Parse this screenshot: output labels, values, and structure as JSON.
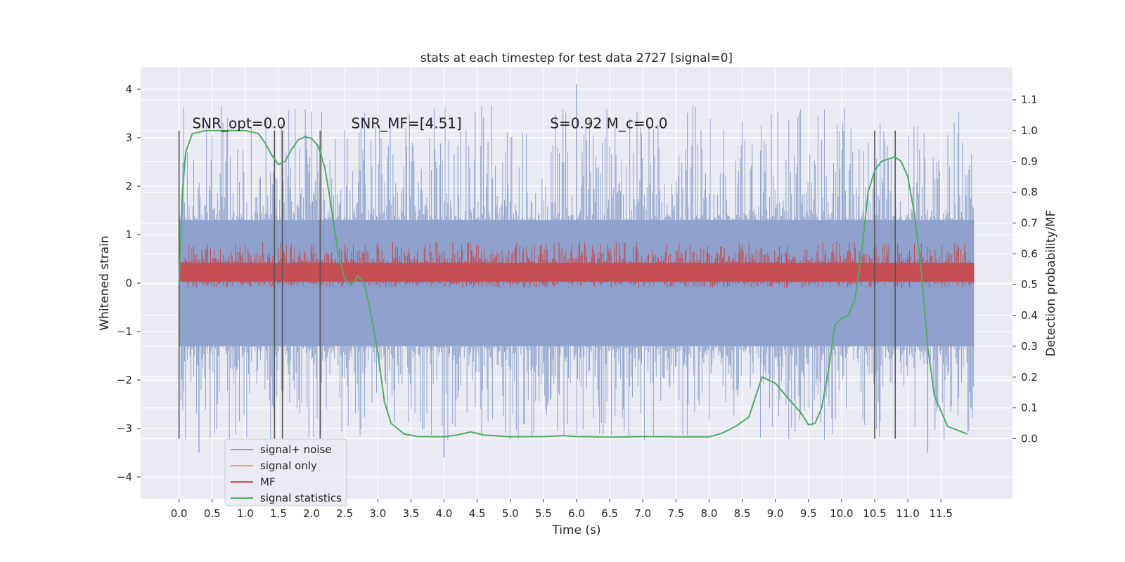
{
  "chart_data": {
    "type": "line",
    "title": "stats at each timestep for test data 2727 [signal=0]",
    "xlabel": "Time (s)",
    "ylabel": "Whitened strain",
    "y2label": "Detection probability/MF",
    "xlim": [
      -0.58,
      12.58
    ],
    "ylim": [
      -4.45,
      4.45
    ],
    "y2lim": [
      -0.195,
      1.205
    ],
    "x_ticks": [
      "0.0",
      "0.5",
      "1.0",
      "1.5",
      "2.0",
      "2.5",
      "3.0",
      "3.5",
      "4.0",
      "4.5",
      "5.0",
      "5.5",
      "6.0",
      "6.5",
      "7.0",
      "7.5",
      "8.0",
      "8.5",
      "9.0",
      "9.5",
      "10.0",
      "10.5",
      "11.0",
      "11.5"
    ],
    "y_ticks": [
      "−4",
      "−3",
      "−2",
      "−1",
      "0",
      "1",
      "2",
      "3",
      "4"
    ],
    "y2_ticks": [
      "0.0",
      "0.1",
      "0.2",
      "0.3",
      "0.4",
      "0.5",
      "0.6",
      "0.7",
      "0.8",
      "0.9",
      "1.0",
      "1.1"
    ],
    "grid": true,
    "legend_position": "lower-left",
    "annotations": [
      {
        "text": "SNR_opt=0.0",
        "x": 0.2,
        "y": 3.3
      },
      {
        "text": "SNR_MF=[4.51]",
        "x": 2.6,
        "y": 3.3
      },
      {
        "text": "S=0.92   M_c=0.0",
        "x": 5.6,
        "y": 3.3
      }
    ],
    "vlines": {
      "x": [
        0.0,
        1.44,
        1.56,
        2.13,
        10.5,
        10.81
      ],
      "ymin": 0.0,
      "ymax": 1.0
    },
    "series": [
      {
        "name": "signal+ noise",
        "axis": "left",
        "color": "#8da0cb",
        "x_range": [
          0.0,
          12.0
        ],
        "envelope_upper": 1.3,
        "envelope_lower": -1.3,
        "spike_max": 4.1,
        "spike_min": -3.6
      },
      {
        "name": "signal only",
        "axis": "left",
        "color": "#e8a68a",
        "values": []
      },
      {
        "name": "MF",
        "axis": "right",
        "color": "#c44e52",
        "x_range": [
          0.0,
          12.0
        ],
        "band_low": 0.51,
        "band_high": 0.57,
        "spike_max": 0.64
      },
      {
        "name": "signal statistics",
        "axis": "right",
        "color": "#55a868",
        "x": [
          0.0,
          0.05,
          0.1,
          0.2,
          0.4,
          1.0,
          1.2,
          1.3,
          1.4,
          1.5,
          1.6,
          1.7,
          1.8,
          1.9,
          2.0,
          2.1,
          2.2,
          2.3,
          2.4,
          2.5,
          2.6,
          2.65,
          2.7,
          2.8,
          2.9,
          3.0,
          3.1,
          3.2,
          3.4,
          3.6,
          4.0,
          4.2,
          4.4,
          4.6,
          5.0,
          5.5,
          5.8,
          6.0,
          6.5,
          7.0,
          7.5,
          8.0,
          8.2,
          8.4,
          8.6,
          8.8,
          9.0,
          9.2,
          9.4,
          9.5,
          9.6,
          9.7,
          9.8,
          9.9,
          10.0,
          10.1,
          10.2,
          10.3,
          10.4,
          10.5,
          10.6,
          10.8,
          10.9,
          11.0,
          11.1,
          11.2,
          11.3,
          11.4,
          11.6,
          11.9
        ],
        "values": [
          0.5,
          0.8,
          0.93,
          0.99,
          1.0,
          1.0,
          0.99,
          0.96,
          0.92,
          0.89,
          0.9,
          0.94,
          0.97,
          0.98,
          0.975,
          0.95,
          0.88,
          0.75,
          0.6,
          0.52,
          0.5,
          0.51,
          0.53,
          0.5,
          0.4,
          0.28,
          0.12,
          0.05,
          0.015,
          0.007,
          0.006,
          0.012,
          0.022,
          0.012,
          0.006,
          0.007,
          0.01,
          0.007,
          0.005,
          0.007,
          0.006,
          0.006,
          0.018,
          0.04,
          0.07,
          0.2,
          0.18,
          0.13,
          0.08,
          0.045,
          0.05,
          0.1,
          0.22,
          0.37,
          0.39,
          0.4,
          0.45,
          0.6,
          0.8,
          0.87,
          0.9,
          0.915,
          0.9,
          0.85,
          0.73,
          0.55,
          0.3,
          0.14,
          0.04,
          0.015
        ]
      }
    ]
  }
}
